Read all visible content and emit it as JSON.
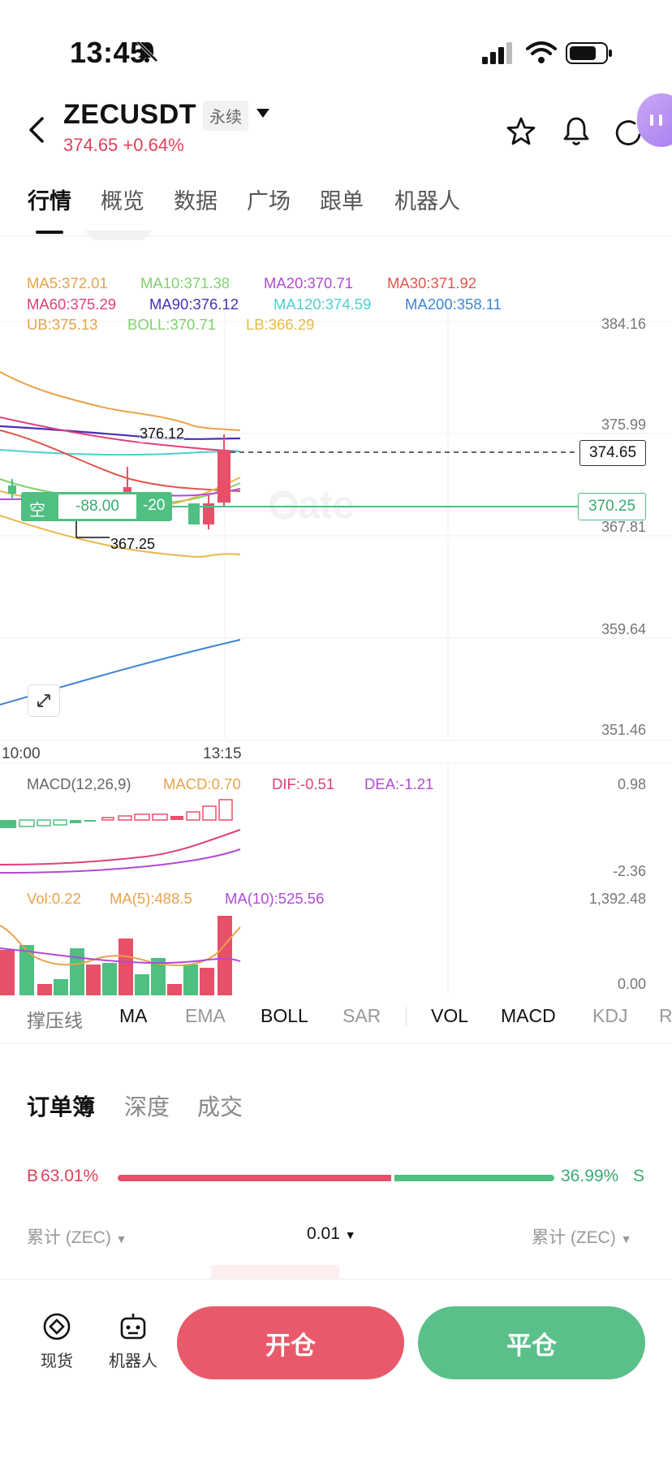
{
  "status": {
    "time": "13:45"
  },
  "header": {
    "title": "ZECUSDT",
    "badge": "永续",
    "price_change": "374.65 +0.64%"
  },
  "tabs": [
    "行情",
    "概览",
    "数据",
    "广场",
    "跟单",
    "机器人"
  ],
  "chart": {
    "ma_row1": [
      {
        "label": "MA5:372.01",
        "color": "#e8a24a"
      },
      {
        "label": "MA10:371.38",
        "color": "#7ed36b"
      },
      {
        "label": "MA20:370.71",
        "color": "#b04bd6"
      },
      {
        "label": "MA30:371.92",
        "color": "#e0554a"
      }
    ],
    "ma_row2": [
      {
        "label": "MA60:375.29",
        "color": "#e0407a"
      },
      {
        "label": "MA90:376.12",
        "color": "#4a2fb8"
      },
      {
        "label": "MA120:374.59",
        "color": "#4fcfcf"
      },
      {
        "label": "MA200:358.11",
        "color": "#3c85d6"
      }
    ],
    "boll_row": [
      {
        "label": "UB:375.13",
        "color": "#e8a24a"
      },
      {
        "label": "BOLL:370.71",
        "color": "#7ed36b"
      },
      {
        "label": "LB:366.29",
        "color": "#e8b84a"
      }
    ],
    "y_axis": [
      "384.16",
      "375.99",
      "367.81",
      "359.64",
      "351.46"
    ],
    "current_price": "374.65",
    "order_line_price": "370.25",
    "order_tag": {
      "side": "空",
      "pnl": "-88.00",
      "qty": "-20"
    },
    "high_marker": "376.12",
    "low_marker": "367.25",
    "x_axis": [
      "10:00",
      "13:15"
    ],
    "macd": {
      "title": "MACD(12,26,9)",
      "macd": "MACD:0.70",
      "dif": "DIF:-0.51",
      "dea": "DEA:-1.21",
      "y_top": "0.98",
      "y_bottom": "-2.36"
    },
    "vol": {
      "vol": "Vol:0.22",
      "ma5": "MA(5):488.5",
      "ma10": "MA(10):525.56",
      "y_top": "1,392.48",
      "y_bottom": "0.00"
    },
    "colors": {
      "up": "#e8506a",
      "down": "#4fbf82"
    }
  },
  "indicator_tabs": [
    "撑压线",
    "MA",
    "EMA",
    "BOLL",
    "SAR",
    "VOL",
    "MACD",
    "KDJ",
    "R"
  ],
  "orderbook": {
    "tabs": [
      "订单簿",
      "深度",
      "成交"
    ],
    "buy_ratio": "63.01%",
    "sell_ratio": "36.99%",
    "buy_prefix": "B",
    "sell_suffix": "S",
    "buy_fraction": 0.6301,
    "col_left": "累计 (ZEC)",
    "col_mid": "0.01",
    "col_right": "累计 (ZEC)"
  },
  "bottom_nav": {
    "spot_label": "现货",
    "bot_label": "机器人",
    "open_label": "开仓",
    "close_label": "平仓"
  }
}
